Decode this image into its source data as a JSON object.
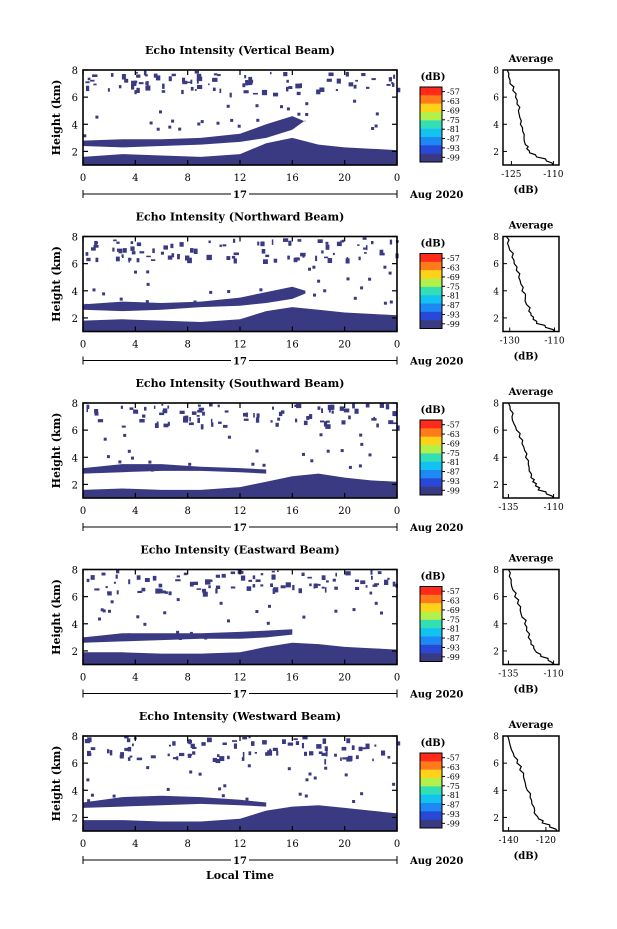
{
  "figure": {
    "bottom_xlabel": "Local Time"
  },
  "chart_data": [
    {
      "type": "heatmap",
      "title": "Echo Intensity (Vertical Beam)",
      "ylabel": "Height (km)",
      "yticks": [
        "2",
        "4",
        "6",
        "8"
      ],
      "ylim": [
        1,
        8
      ],
      "xticks": [
        "0",
        "4",
        "8",
        "12",
        "16",
        "20",
        "0"
      ],
      "xlim": [
        0,
        24
      ],
      "day_label": "17",
      "month_label": "Aug 2020",
      "colorbar": {
        "unit": "(dB)",
        "ticks": [
          "-57",
          "-63",
          "-69",
          "-75",
          "-81",
          "-87",
          "-93",
          "-99"
        ]
      },
      "echo_layers": [
        {
          "x": [
            0,
            3,
            6,
            9,
            12,
            14,
            16,
            18,
            20,
            22,
            24
          ],
          "bottom": [
            1,
            1,
            1,
            1,
            1,
            1,
            1,
            1,
            1,
            1,
            1
          ],
          "top": [
            1.6,
            1.8,
            1.7,
            1.6,
            1.8,
            2.6,
            3.0,
            2.5,
            2.3,
            2.2,
            2.1
          ]
        },
        {
          "x": [
            0,
            3,
            6,
            9,
            12,
            14,
            16,
            17
          ],
          "bottom": [
            2.4,
            2.3,
            2.4,
            2.5,
            2.7,
            3.0,
            3.6,
            4.3
          ],
          "top": [
            2.8,
            2.9,
            2.9,
            3.0,
            3.3,
            4.0,
            4.6,
            4.2
          ]
        }
      ],
      "avg_profile": {
        "title": "Average",
        "xlabel": "(dB)",
        "xticks": [
          "-125",
          "-110"
        ],
        "xlim": [
          -128,
          -108
        ],
        "yticks": [
          "2",
          "4",
          "6",
          "8"
        ],
        "ylim": [
          1,
          8
        ],
        "height": [
          1.0,
          1.3,
          1.6,
          1.9,
          2.2,
          2.5,
          3.0,
          3.5,
          4.0,
          4.5,
          5.0,
          5.5,
          6.0,
          6.5,
          7.0,
          7.5,
          8.0
        ],
        "value": [
          -110.0,
          -112.5,
          -116.0,
          -118.5,
          -119.5,
          -120.0,
          -120.5,
          -121.0,
          -121.8,
          -122.0,
          -122.5,
          -123.0,
          -123.5,
          -124.5,
          -125.5,
          -126.0,
          -126.5
        ]
      }
    },
    {
      "type": "heatmap",
      "title": "Echo Intensity (Northward Beam)",
      "ylabel": "Height (km)",
      "yticks": [
        "2",
        "4",
        "6",
        "8"
      ],
      "ylim": [
        1,
        8
      ],
      "xticks": [
        "0",
        "4",
        "8",
        "12",
        "16",
        "20",
        "0"
      ],
      "xlim": [
        0,
        24
      ],
      "day_label": "17",
      "month_label": "Aug 2020",
      "colorbar": {
        "unit": "(dB)",
        "ticks": [
          "-57",
          "-63",
          "-69",
          "-75",
          "-81",
          "-87",
          "-93",
          "-99"
        ]
      },
      "echo_layers": [
        {
          "x": [
            0,
            3,
            6,
            9,
            12,
            14,
            16,
            18,
            20,
            22,
            24
          ],
          "bottom": [
            1,
            1,
            1,
            1,
            1,
            1,
            1,
            1,
            1,
            1,
            1
          ],
          "top": [
            1.8,
            1.9,
            1.8,
            1.7,
            1.9,
            2.5,
            2.8,
            2.6,
            2.4,
            2.3,
            2.2
          ]
        },
        {
          "x": [
            0,
            3,
            6,
            9,
            12,
            14,
            16,
            17
          ],
          "bottom": [
            2.6,
            2.5,
            2.6,
            2.8,
            2.9,
            3.1,
            3.4,
            3.8
          ],
          "top": [
            3.0,
            3.2,
            3.1,
            3.2,
            3.5,
            3.9,
            4.3,
            4.0
          ]
        }
      ],
      "avg_profile": {
        "title": "Average",
        "xlabel": "(dB)",
        "xticks": [
          "-130",
          "-110"
        ],
        "xlim": [
          -133,
          -108
        ],
        "yticks": [
          "2",
          "4",
          "6",
          "8"
        ],
        "ylim": [
          1,
          8
        ],
        "height": [
          1.0,
          1.3,
          1.6,
          1.9,
          2.2,
          2.5,
          3.0,
          3.5,
          4.0,
          4.5,
          5.0,
          5.5,
          6.0,
          6.5,
          7.0,
          7.5,
          8.0
        ],
        "value": [
          -110.0,
          -114.0,
          -118.0,
          -119.5,
          -120.5,
          -121.5,
          -122.5,
          -123.0,
          -124.5,
          -125.0,
          -126.0,
          -127.0,
          -128.0,
          -129.0,
          -130.0,
          -131.0,
          -131.5
        ]
      }
    },
    {
      "type": "heatmap",
      "title": "Echo Intensity (Southward Beam)",
      "ylabel": "Height (km)",
      "yticks": [
        "2",
        "4",
        "6",
        "8"
      ],
      "ylim": [
        1,
        8
      ],
      "xticks": [
        "0",
        "4",
        "8",
        "12",
        "16",
        "20",
        "0"
      ],
      "xlim": [
        0,
        24
      ],
      "day_label": "17",
      "month_label": "Aug 2020",
      "colorbar": {
        "unit": "(dB)",
        "ticks": [
          "-57",
          "-63",
          "-69",
          "-75",
          "-81",
          "-87",
          "-93",
          "-99"
        ]
      },
      "echo_layers": [
        {
          "x": [
            0,
            3,
            6,
            9,
            12,
            14,
            16,
            18,
            20,
            22,
            24
          ],
          "bottom": [
            1,
            1,
            1,
            1,
            1,
            1,
            1,
            1,
            1,
            1,
            1
          ],
          "top": [
            1.6,
            1.7,
            1.6,
            1.6,
            1.8,
            2.2,
            2.6,
            2.8,
            2.5,
            2.3,
            2.2
          ]
        },
        {
          "x": [
            0,
            3,
            6,
            9,
            12,
            14
          ],
          "bottom": [
            2.8,
            2.9,
            3.0,
            3.0,
            2.9,
            2.8
          ],
          "top": [
            3.2,
            3.5,
            3.5,
            3.3,
            3.2,
            3.1
          ]
        }
      ],
      "avg_profile": {
        "title": "Average",
        "xlabel": "",
        "xticks": [
          "-135",
          "-110"
        ],
        "xlim": [
          -138,
          -107
        ],
        "yticks": [
          "2",
          "4",
          "6",
          "8"
        ],
        "ylim": [
          1,
          8
        ],
        "height": [
          1.0,
          1.3,
          1.6,
          1.9,
          2.2,
          2.5,
          3.0,
          3.5,
          4.0,
          4.5,
          5.0,
          5.5,
          6.0,
          6.5,
          7.0,
          7.5,
          8.0
        ],
        "value": [
          -110.0,
          -114.0,
          -118.5,
          -120.0,
          -121.5,
          -122.5,
          -123.5,
          -124.0,
          -125.5,
          -126.0,
          -127.5,
          -129.0,
          -130.5,
          -132.0,
          -133.0,
          -134.0,
          -135.0
        ]
      }
    },
    {
      "type": "heatmap",
      "title": "Echo Intensity (Eastward Beam)",
      "ylabel": "Height (km)",
      "yticks": [
        "2",
        "4",
        "6",
        "8"
      ],
      "ylim": [
        1,
        8
      ],
      "xticks": [
        "0",
        "4",
        "8",
        "12",
        "16",
        "20",
        "0"
      ],
      "xlim": [
        0,
        24
      ],
      "day_label": "17",
      "month_label": "Aug 2020",
      "colorbar": {
        "unit": "(dB)",
        "ticks": [
          "-57",
          "-63",
          "-69",
          "-75",
          "-81",
          "-87",
          "-93",
          "-99"
        ]
      },
      "echo_layers": [
        {
          "x": [
            0,
            3,
            6,
            9,
            12,
            14,
            16,
            18,
            20,
            22,
            24
          ],
          "bottom": [
            1,
            1,
            1,
            1,
            1,
            1,
            1,
            1,
            1,
            1,
            1
          ],
          "top": [
            1.9,
            1.9,
            1.8,
            1.8,
            1.9,
            2.3,
            2.6,
            2.5,
            2.3,
            2.2,
            2.1
          ]
        },
        {
          "x": [
            0,
            3,
            6,
            9,
            12,
            14,
            16
          ],
          "bottom": [
            2.6,
            2.7,
            2.8,
            2.9,
            2.9,
            3.0,
            3.2
          ],
          "top": [
            3.0,
            3.3,
            3.3,
            3.3,
            3.4,
            3.5,
            3.6
          ]
        }
      ],
      "avg_profile": {
        "title": "Average",
        "xlabel": "(dB)",
        "xticks": [
          "-135",
          "-110"
        ],
        "xlim": [
          -138,
          -107
        ],
        "yticks": [
          "2",
          "4",
          "6",
          "8"
        ],
        "ylim": [
          1,
          8
        ],
        "height": [
          1.0,
          1.3,
          1.6,
          1.9,
          2.2,
          2.5,
          3.0,
          3.5,
          4.0,
          4.5,
          5.0,
          5.5,
          6.0,
          6.5,
          7.0,
          7.5,
          8.0
        ],
        "value": [
          -110.0,
          -113.0,
          -117.0,
          -119.5,
          -121.0,
          -122.5,
          -124.0,
          -125.0,
          -126.0,
          -127.5,
          -128.5,
          -130.0,
          -131.5,
          -132.5,
          -133.5,
          -134.5,
          -135.0
        ]
      }
    },
    {
      "type": "heatmap",
      "title": "Echo Intensity (Westward Beam)",
      "ylabel": "Height (km)",
      "yticks": [
        "2",
        "4",
        "6",
        "8"
      ],
      "ylim": [
        1,
        8
      ],
      "xticks": [
        "0",
        "4",
        "8",
        "12",
        "16",
        "20",
        "0"
      ],
      "xlim": [
        0,
        24
      ],
      "day_label": "17",
      "month_label": "Aug 2020",
      "colorbar": {
        "unit": "(dB)",
        "ticks": [
          "-57",
          "-63",
          "-69",
          "-75",
          "-81",
          "-87",
          "-93",
          "-99"
        ]
      },
      "echo_layers": [
        {
          "x": [
            0,
            3,
            6,
            9,
            12,
            14,
            16,
            18,
            20,
            22,
            24
          ],
          "bottom": [
            1,
            1,
            1,
            1,
            1,
            1,
            1,
            1,
            1,
            1,
            1
          ],
          "top": [
            1.8,
            1.8,
            1.7,
            1.7,
            1.9,
            2.5,
            2.8,
            2.9,
            2.7,
            2.5,
            2.3
          ]
        },
        {
          "x": [
            0,
            3,
            6,
            9,
            12,
            14
          ],
          "bottom": [
            2.7,
            2.8,
            2.9,
            3.0,
            2.9,
            2.8
          ],
          "top": [
            3.1,
            3.5,
            3.6,
            3.5,
            3.3,
            3.1
          ]
        }
      ],
      "avg_profile": {
        "title": "Average",
        "xlabel": "(dB)",
        "xticks": [
          "-140",
          "-120"
        ],
        "xlim": [
          -143,
          -113
        ],
        "yticks": [
          "2",
          "4",
          "6",
          "8"
        ],
        "ylim": [
          1,
          8
        ],
        "height": [
          1.0,
          1.3,
          1.6,
          1.9,
          2.2,
          2.5,
          3.0,
          3.5,
          4.0,
          4.5,
          5.0,
          5.5,
          6.0,
          6.5,
          7.0,
          7.5,
          8.0
        ],
        "value": [
          -114.0,
          -118.0,
          -122.0,
          -124.0,
          -125.5,
          -126.0,
          -127.5,
          -128.5,
          -130.0,
          -131.0,
          -132.0,
          -134.0,
          -135.5,
          -137.0,
          -138.5,
          -139.5,
          -140.5
        ]
      }
    }
  ]
}
